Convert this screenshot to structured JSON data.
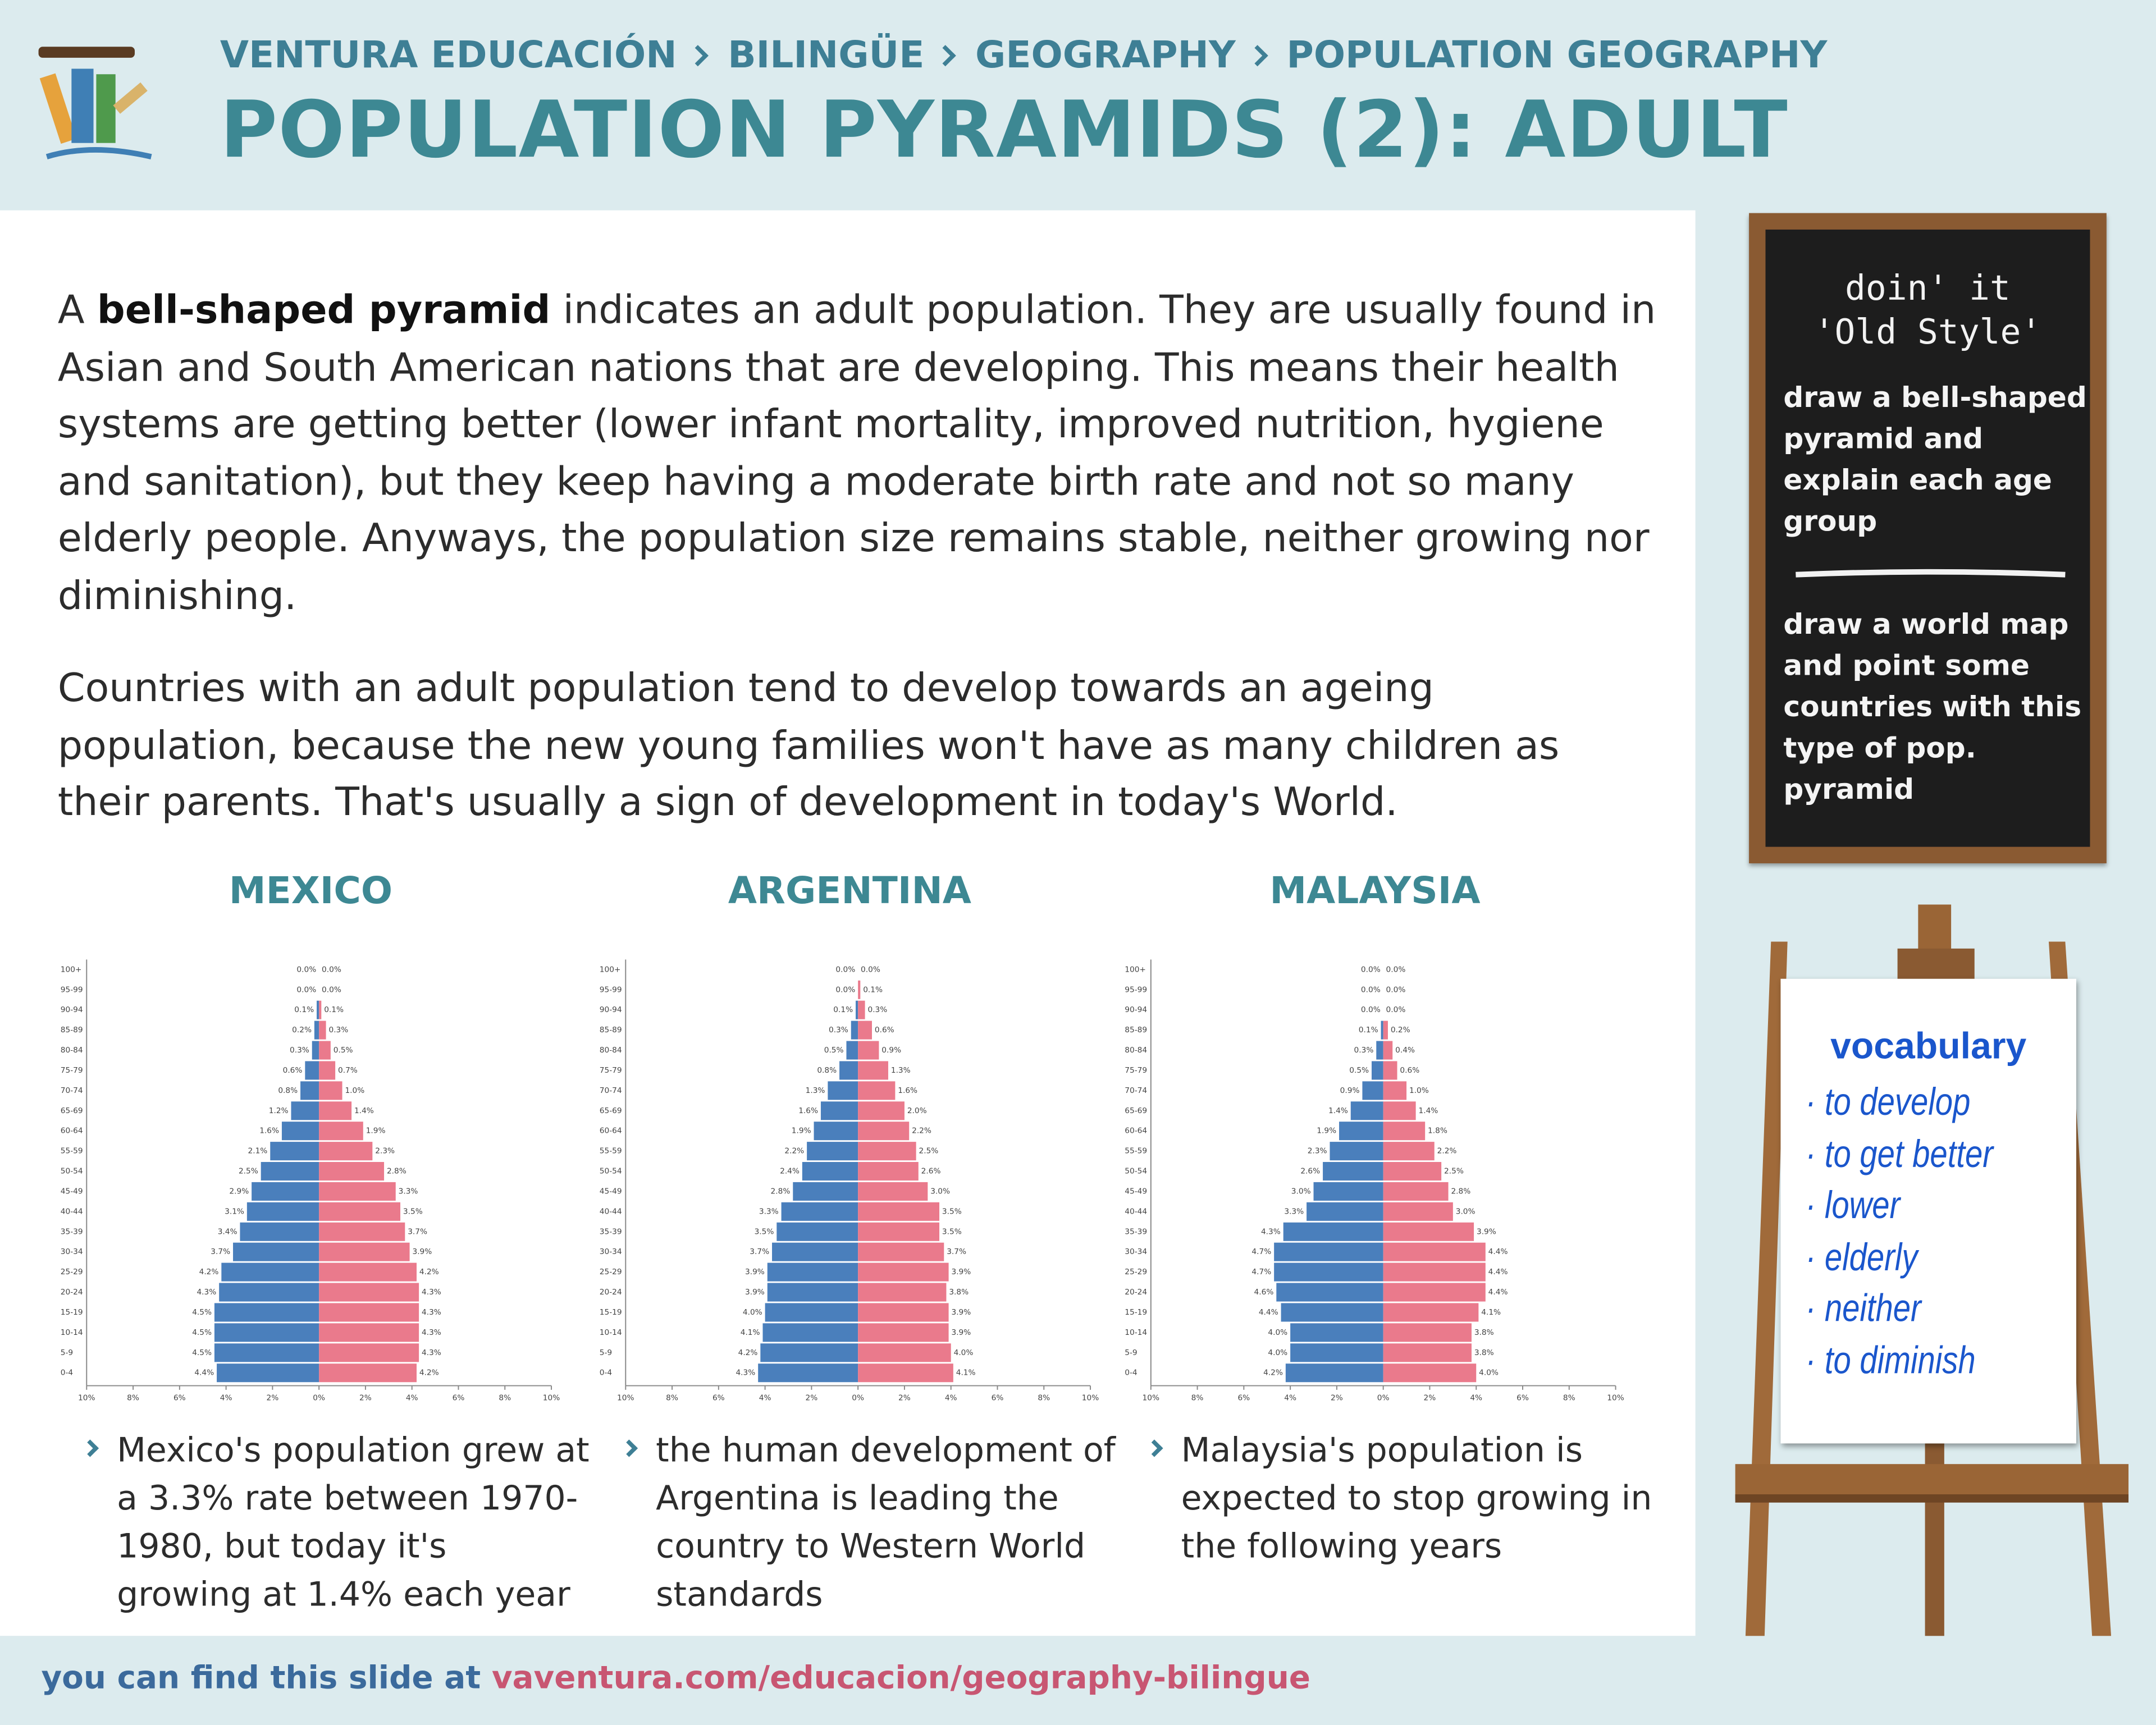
{
  "header": {
    "breadcrumb": [
      "VENTURA EDUCACIÓN",
      "BILINGÜE",
      "GEOGRAPHY",
      "POPULATION GEOGRAPHY"
    ],
    "title": "POPULATION PYRAMIDS (2): ADULT"
  },
  "paragraphs": [
    [
      "A",
      "bell-shaped pyramid",
      "indicates an adult population. They are usually found in Asian and South American nations that are developing. This means their health systems are getting better (lower infant mortality, improved nutrition, hygiene and sanitation), but they keep having a moderate birth rate and not so many elderly people. Anyways, the population size remains stable, neither growing nor diminishing."
    ],
    [
      "Countries with an adult population tend to develop towards an ageing population, because the new young families won't have as many children as their parents. That's usually a sign of development in today's World."
    ]
  ],
  "chalkboard": {
    "title": [
      "doin' it",
      "'Old Style'"
    ],
    "tasks": [
      "draw a bell-shaped pyramid and explain each age group",
      "draw a world map and point some countries with this type of pop. pyramid"
    ]
  },
  "vocabulary": {
    "title": "vocabulary",
    "items": [
      "· to develop",
      "· to get better",
      "· lower",
      "· elderly",
      "· neither",
      "· to diminish"
    ]
  },
  "chart_data": [
    {
      "type": "pyramid",
      "title": "MEXICO",
      "categories": [
        "0-4",
        "5-9",
        "10-14",
        "15-19",
        "20-24",
        "25-29",
        "30-34",
        "35-39",
        "40-44",
        "45-49",
        "50-54",
        "55-59",
        "60-64",
        "65-69",
        "70-74",
        "75-79",
        "80-84",
        "85-89",
        "90-94",
        "95-99",
        "100+"
      ],
      "series": [
        {
          "color": "#4a7fbc",
          "values": [
            4.4,
            4.5,
            4.5,
            4.5,
            4.3,
            4.2,
            3.7,
            3.4,
            3.1,
            2.9,
            2.5,
            2.1,
            1.6,
            1.2,
            0.8,
            0.6,
            0.3,
            0.2,
            0.1,
            0.0,
            0.0
          ],
          "value_labels": [
            "4.4%",
            "4.5%",
            "4.5%",
            "4.5%",
            "4.3%",
            "4.2%",
            "3.7%",
            "3.4%",
            "3.1%",
            "2.9%",
            "2.5%",
            "2.1%",
            "1.6%",
            "1.2%",
            "0.8%",
            "0.6%",
            "0.3%",
            "0.2%",
            "0.1%",
            "0.0%",
            "0.0%"
          ]
        },
        {
          "color": "#ea7a8c",
          "values": [
            4.2,
            4.3,
            4.3,
            4.3,
            4.3,
            4.2,
            3.9,
            3.7,
            3.5,
            3.3,
            2.8,
            2.3,
            1.9,
            1.4,
            1.0,
            0.7,
            0.5,
            0.3,
            0.1,
            0.0,
            0.0
          ],
          "value_labels": [
            "4.2%",
            "4.3%",
            "4.3%",
            "4.3%",
            "4.3%",
            "4.2%",
            "3.9%",
            "3.7%",
            "3.5%",
            "3.3%",
            "2.8%",
            "2.3%",
            "1.9%",
            "1.4%",
            "1.0%",
            "0.7%",
            "0.5%",
            "0.3%",
            "0.1%",
            "0.0%",
            "0.0%"
          ]
        }
      ],
      "xlim": [
        -10,
        10
      ],
      "xticks": [
        {
          "value": -10,
          "label": "10%"
        },
        {
          "value": -8,
          "label": "8%"
        },
        {
          "value": -6,
          "label": "6%"
        },
        {
          "value": -4,
          "label": "4%"
        },
        {
          "value": -2,
          "label": "2%"
        },
        {
          "value": 0,
          "label": "0%"
        },
        {
          "value": 2,
          "label": "2%"
        },
        {
          "value": 4,
          "label": "4%"
        },
        {
          "value": 6,
          "label": "6%"
        },
        {
          "value": 8,
          "label": "8%"
        },
        {
          "value": 10,
          "label": "10%"
        }
      ],
      "caption": "Mexico's population grew at a 3.3% rate between 1970-1980, but today it's growing at 1.4% each year"
    },
    {
      "type": "pyramid",
      "title": "ARGENTINA",
      "categories": [
        "0-4",
        "5-9",
        "10-14",
        "15-19",
        "20-24",
        "25-29",
        "30-34",
        "35-39",
        "40-44",
        "45-49",
        "50-54",
        "55-59",
        "60-64",
        "65-69",
        "70-74",
        "75-79",
        "80-84",
        "85-89",
        "90-94",
        "95-99",
        "100+"
      ],
      "series": [
        {
          "color": "#4a7fbc",
          "values": [
            4.3,
            4.2,
            4.1,
            4.0,
            3.9,
            3.9,
            3.7,
            3.5,
            3.3,
            2.8,
            2.4,
            2.2,
            1.9,
            1.6,
            1.3,
            0.8,
            0.5,
            0.3,
            0.1,
            0.0,
            0.0
          ],
          "value_labels": [
            "4.3%",
            "4.2%",
            "4.1%",
            "4.0%",
            "3.9%",
            "3.9%",
            "3.7%",
            "3.5%",
            "3.3%",
            "2.8%",
            "2.4%",
            "2.2%",
            "1.9%",
            "1.6%",
            "1.3%",
            "0.8%",
            "0.5%",
            "0.3%",
            "0.1%",
            "0.0%",
            "0.0%"
          ]
        },
        {
          "color": "#ea7a8c",
          "values": [
            4.1,
            4.0,
            3.9,
            3.9,
            3.8,
            3.9,
            3.7,
            3.5,
            3.5,
            3.0,
            2.6,
            2.5,
            2.2,
            2.0,
            1.6,
            1.3,
            0.9,
            0.6,
            0.3,
            0.1,
            0.0
          ],
          "value_labels": [
            "4.1%",
            "4.0%",
            "3.9%",
            "3.9%",
            "3.8%",
            "3.9%",
            "3.7%",
            "3.5%",
            "3.5%",
            "3.0%",
            "2.6%",
            "2.5%",
            "2.2%",
            "2.0%",
            "1.6%",
            "1.3%",
            "0.9%",
            "0.6%",
            "0.3%",
            "0.1%",
            "0.0%"
          ]
        }
      ],
      "xlim": [
        -10,
        10
      ],
      "xticks": [
        {
          "value": -10,
          "label": "10%"
        },
        {
          "value": -8,
          "label": "8%"
        },
        {
          "value": -6,
          "label": "6%"
        },
        {
          "value": -4,
          "label": "4%"
        },
        {
          "value": -2,
          "label": "2%"
        },
        {
          "value": 0,
          "label": "0%"
        },
        {
          "value": 2,
          "label": "2%"
        },
        {
          "value": 4,
          "label": "4%"
        },
        {
          "value": 6,
          "label": "6%"
        },
        {
          "value": 8,
          "label": "8%"
        },
        {
          "value": 10,
          "label": "10%"
        }
      ],
      "caption": "the human development of Argentina is leading the country to Western World standards"
    },
    {
      "type": "pyramid",
      "title": "MALAYSIA",
      "categories": [
        "0-4",
        "5-9",
        "10-14",
        "15-19",
        "20-24",
        "25-29",
        "30-34",
        "35-39",
        "40-44",
        "45-49",
        "50-54",
        "55-59",
        "60-64",
        "65-69",
        "70-74",
        "75-79",
        "80-84",
        "85-89",
        "90-94",
        "95-99",
        "100+"
      ],
      "series": [
        {
          "color": "#4a7fbc",
          "values": [
            4.2,
            4.0,
            4.0,
            4.4,
            4.6,
            4.7,
            4.7,
            4.3,
            3.3,
            3.0,
            2.6,
            2.3,
            1.9,
            1.4,
            0.9,
            0.5,
            0.3,
            0.1,
            0.0,
            0.0,
            0.0
          ],
          "value_labels": [
            "4.2%",
            "4.0%",
            "4.0%",
            "4.4%",
            "4.6%",
            "4.7%",
            "4.7%",
            "4.3%",
            "3.3%",
            "3.0%",
            "2.6%",
            "2.3%",
            "1.9%",
            "1.4%",
            "0.9%",
            "0.5%",
            "0.3%",
            "0.1%",
            "0.0%",
            "0.0%",
            "0.0%"
          ]
        },
        {
          "color": "#ea7a8c",
          "values": [
            4.0,
            3.8,
            3.8,
            4.1,
            4.4,
            4.4,
            4.4,
            3.9,
            3.0,
            2.8,
            2.5,
            2.2,
            1.8,
            1.4,
            1.0,
            0.6,
            0.4,
            0.2,
            0.0,
            0.0,
            0.0
          ],
          "value_labels": [
            "4.0%",
            "3.8%",
            "3.8%",
            "4.1%",
            "4.4%",
            "4.4%",
            "4.4%",
            "3.9%",
            "3.0%",
            "2.8%",
            "2.5%",
            "2.2%",
            "1.8%",
            "1.4%",
            "1.0%",
            "0.6%",
            "0.4%",
            "0.2%",
            "0.0%",
            "0.0%",
            "0.0%"
          ]
        }
      ],
      "xlim": [
        -10,
        10
      ],
      "xticks": [
        {
          "value": -10,
          "label": "10%"
        },
        {
          "value": -8,
          "label": "8%"
        },
        {
          "value": -6,
          "label": "6%"
        },
        {
          "value": -4,
          "label": "4%"
        },
        {
          "value": -2,
          "label": "2%"
        },
        {
          "value": 0,
          "label": "0%"
        },
        {
          "value": 2,
          "label": "2%"
        },
        {
          "value": 4,
          "label": "4%"
        },
        {
          "value": 6,
          "label": "6%"
        },
        {
          "value": 8,
          "label": "8%"
        },
        {
          "value": 10,
          "label": "10%"
        }
      ],
      "caption": "Malaysia's population is expected to stop growing in the following years"
    }
  ],
  "footer": {
    "text": "you can find this slide at",
    "link": "vaventura.com/educacion/geography-bilingue"
  }
}
